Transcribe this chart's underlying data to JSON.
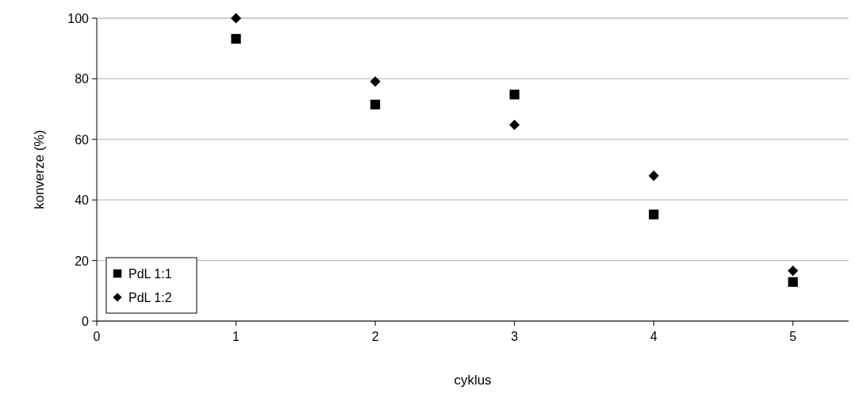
{
  "chart_data": {
    "type": "scatter",
    "xlabel": "cyklus",
    "ylabel": "konverze (%)",
    "x": [
      1,
      2,
      3,
      4,
      5
    ],
    "series": [
      {
        "name": "PdL 1:1",
        "color": "#000000",
        "marker": "square",
        "values": [
          93.2,
          71.5,
          74.8,
          35.2,
          12.9
        ]
      },
      {
        "name": "PdL 1:2",
        "color": "#000000",
        "marker": "diamond",
        "values": [
          100,
          79.1,
          64.8,
          48,
          16.6
        ]
      }
    ],
    "xlim": [
      0,
      5.4
    ],
    "xticks": [
      0,
      1,
      2,
      3,
      4,
      5
    ],
    "ylim": [
      0,
      100
    ],
    "yticks": [
      0,
      20,
      40,
      60,
      80,
      100
    ],
    "grid": "y",
    "legend": "bottom left"
  }
}
